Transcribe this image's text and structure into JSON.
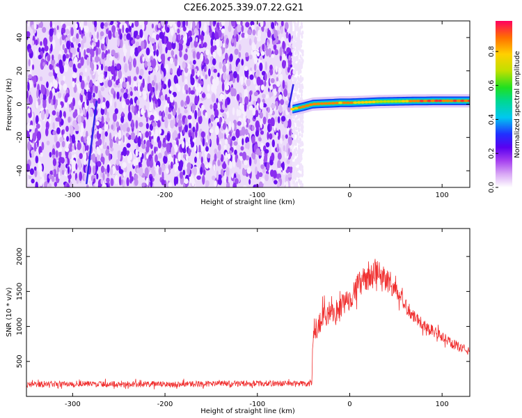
{
  "title": "C2E6.2025.339.07.22.G21",
  "chart_data": [
    {
      "type": "heatmap",
      "xlabel": "Height of straight line (km)",
      "ylabel": "Frequency (Hz)",
      "xlim": [
        -350,
        130
      ],
      "ylim": [
        -50,
        50
      ],
      "x_ticks": [
        -300,
        -200,
        -100,
        0,
        100
      ],
      "y_ticks": [
        -40,
        -20,
        0,
        20,
        40
      ],
      "noise_region_x": [
        -350,
        -62
      ],
      "signal_band": {
        "x": [
          -62,
          -50,
          -40,
          -30,
          -20,
          -10,
          0,
          10,
          20,
          30,
          40,
          50,
          60,
          70,
          80,
          90,
          100,
          110,
          120,
          130
        ],
        "center_hz": [
          -3,
          -1.5,
          0,
          0.3,
          0.5,
          0.8,
          0.8,
          1.0,
          1.2,
          1.5,
          1.6,
          1.7,
          1.8,
          1.9,
          1.9,
          2.0,
          2.0,
          2.0,
          2.0,
          2.0
        ],
        "peak_amplitude": [
          0.7,
          0.85,
          0.9,
          0.9,
          0.85,
          0.8,
          0.9,
          0.8,
          0.75,
          0.7,
          0.65,
          0.6,
          0.75,
          0.9,
          0.95,
          0.95,
          0.95,
          0.9,
          0.9,
          0.9
        ]
      },
      "streaks": [
        {
          "x1": -285,
          "y1": -48,
          "x2": -274,
          "y2": 2
        },
        {
          "x1": -66,
          "y1": -2,
          "x2": -61,
          "y2": 12
        }
      ],
      "colorbar": {
        "label": "Normalized spectral amplitude",
        "range": [
          0,
          0.98
        ],
        "ticks": [
          0.0,
          0.2,
          0.4,
          0.6,
          0.8
        ]
      }
    },
    {
      "type": "line",
      "xlabel": "Height of straight line (km)",
      "ylabel": "SNR (10 * v/v)",
      "xlim": [
        -350,
        130
      ],
      "ylim": [
        0,
        2400
      ],
      "x_ticks": [
        -300,
        -200,
        -100,
        0,
        100
      ],
      "y_ticks": [
        500,
        1000,
        1500,
        2000
      ],
      "color": "#f03030",
      "series": [
        {
          "x": [
            -350,
            -300,
            -250,
            -200,
            -150,
            -100,
            -60,
            -41,
            -40,
            -35,
            -30,
            -20,
            -10,
            0,
            10,
            20,
            30,
            40,
            50,
            60,
            70,
            80,
            90,
            100,
            110,
            120,
            130
          ],
          "values": [
            170,
            180,
            175,
            175,
            180,
            185,
            185,
            180,
            800,
            1000,
            1080,
            1150,
            1250,
            1420,
            1600,
            1700,
            1750,
            1680,
            1500,
            1300,
            1150,
            1020,
            940,
            850,
            760,
            700,
            640
          ],
          "spread": [
            70,
            70,
            70,
            70,
            70,
            70,
            70,
            70,
            250,
            320,
            320,
            300,
            300,
            300,
            300,
            320,
            330,
            300,
            230,
            190,
            160,
            150,
            140,
            130,
            120,
            110,
            110
          ]
        }
      ]
    }
  ]
}
